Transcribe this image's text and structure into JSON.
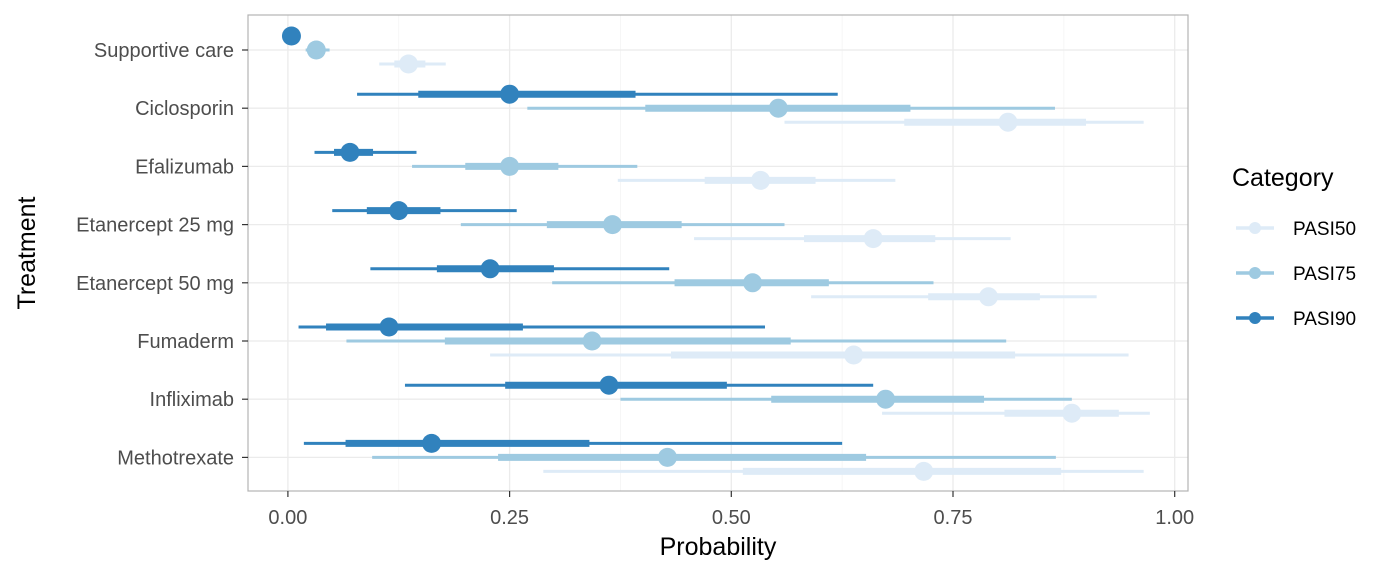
{
  "chart_data": {
    "type": "interval",
    "title": "",
    "xlabel": "Probability",
    "ylabel": "Treatment",
    "xlim": [
      -0.045,
      1.015
    ],
    "x_ticks": [
      0,
      0.25,
      0.5,
      0.75,
      1
    ],
    "x_tick_labels": [
      "0.00",
      "0.25",
      "0.50",
      "0.75",
      "1.00"
    ],
    "grid": true,
    "legend": {
      "title": "Category",
      "position": "right"
    },
    "categories": [
      "Supportive care",
      "Ciclosporin",
      "Efalizumab",
      "Etanercept 25 mg",
      "Etanercept 50 mg",
      "Fumaderm",
      "Infliximab",
      "Methotrexate"
    ],
    "series": [
      {
        "name": "PASI50",
        "color": "#deebf7",
        "points": [
          {
            "median": 0.136,
            "inner": [
              0.12,
              0.155
            ],
            "outer": [
              0.103,
              0.178
            ]
          },
          {
            "median": 0.812,
            "inner": [
              0.695,
              0.9
            ],
            "outer": [
              0.56,
              0.965
            ]
          },
          {
            "median": 0.533,
            "inner": [
              0.47,
              0.595
            ],
            "outer": [
              0.372,
              0.685
            ]
          },
          {
            "median": 0.66,
            "inner": [
              0.582,
              0.73
            ],
            "outer": [
              0.458,
              0.815
            ]
          },
          {
            "median": 0.79,
            "inner": [
              0.722,
              0.848
            ],
            "outer": [
              0.59,
              0.912
            ]
          },
          {
            "median": 0.638,
            "inner": [
              0.432,
              0.82
            ],
            "outer": [
              0.228,
              0.948
            ]
          },
          {
            "median": 0.884,
            "inner": [
              0.808,
              0.937
            ],
            "outer": [
              0.67,
              0.972
            ]
          },
          {
            "median": 0.717,
            "inner": [
              0.513,
              0.872
            ],
            "outer": [
              0.288,
              0.965
            ]
          }
        ]
      },
      {
        "name": "PASI75",
        "color": "#9ecae1",
        "points": [
          {
            "median": 0.032,
            "inner": [
              0.027,
              0.038
            ],
            "outer": [
              0.02,
              0.047
            ]
          },
          {
            "median": 0.553,
            "inner": [
              0.403,
              0.702
            ],
            "outer": [
              0.27,
              0.865
            ]
          },
          {
            "median": 0.25,
            "inner": [
              0.2,
              0.305
            ],
            "outer": [
              0.14,
              0.394
            ]
          },
          {
            "median": 0.366,
            "inner": [
              0.292,
              0.444
            ],
            "outer": [
              0.195,
              0.56
            ]
          },
          {
            "median": 0.524,
            "inner": [
              0.436,
              0.61
            ],
            "outer": [
              0.298,
              0.728
            ]
          },
          {
            "median": 0.343,
            "inner": [
              0.177,
              0.567
            ],
            "outer": [
              0.066,
              0.81
            ]
          },
          {
            "median": 0.674,
            "inner": [
              0.545,
              0.785
            ],
            "outer": [
              0.375,
              0.884
            ]
          },
          {
            "median": 0.428,
            "inner": [
              0.237,
              0.652
            ],
            "outer": [
              0.095,
              0.866
            ]
          }
        ]
      },
      {
        "name": "PASI90",
        "color": "#3182bd",
        "points": [
          {
            "median": 0.004,
            "inner": [
              0.004,
              0.004
            ],
            "outer": [
              0.004,
              0.004
            ]
          },
          {
            "median": 0.25,
            "inner": [
              0.147,
              0.392
            ],
            "outer": [
              0.078,
              0.62
            ]
          },
          {
            "median": 0.07,
            "inner": [
              0.052,
              0.096
            ],
            "outer": [
              0.03,
              0.145
            ]
          },
          {
            "median": 0.125,
            "inner": [
              0.089,
              0.172
            ],
            "outer": [
              0.05,
              0.258
            ]
          },
          {
            "median": 0.228,
            "inner": [
              0.168,
              0.3
            ],
            "outer": [
              0.093,
              0.43
            ]
          },
          {
            "median": 0.114,
            "inner": [
              0.043,
              0.265
            ],
            "outer": [
              0.012,
              0.538
            ]
          },
          {
            "median": 0.362,
            "inner": [
              0.245,
              0.495
            ],
            "outer": [
              0.132,
              0.66
            ]
          },
          {
            "median": 0.162,
            "inner": [
              0.065,
              0.34
            ],
            "outer": [
              0.018,
              0.625
            ]
          }
        ]
      }
    ]
  }
}
